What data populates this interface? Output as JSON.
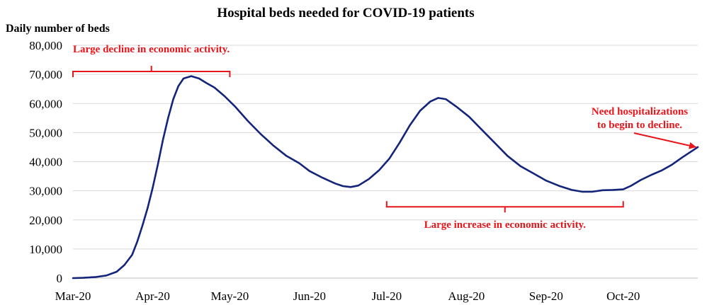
{
  "chart_data": {
    "type": "line",
    "title": "Hospital beds needed for COVID-19 patients",
    "ylabel": "Daily number of beds",
    "xlabel": "",
    "ylim": [
      0,
      80000
    ],
    "yticks": [
      0,
      10000,
      20000,
      30000,
      40000,
      50000,
      60000,
      70000,
      80000
    ],
    "ytick_labels": [
      "0",
      "10,000",
      "20,000",
      "30,000",
      "40,000",
      "50,000",
      "60,000",
      "70,000",
      "80,000"
    ],
    "xticks": [
      {
        "date": "2020-03-01",
        "label": "Mar-20"
      },
      {
        "date": "2020-04-01",
        "label": "Apr-20"
      },
      {
        "date": "2020-05-01",
        "label": "May-20"
      },
      {
        "date": "2020-06-01",
        "label": "Jun-20"
      },
      {
        "date": "2020-07-01",
        "label": "Jul-20"
      },
      {
        "date": "2020-08-01",
        "label": "Aug-20"
      },
      {
        "date": "2020-09-01",
        "label": "Sep-20"
      },
      {
        "date": "2020-10-01",
        "label": "Oct-20"
      }
    ],
    "xlim": [
      "2020-03-01",
      "2020-10-30"
    ],
    "grid": "horizontal",
    "legend": "none",
    "series": [
      {
        "color": "#14247a",
        "points": [
          [
            "2020-03-01",
            0
          ],
          [
            "2020-03-05",
            100
          ],
          [
            "2020-03-10",
            400
          ],
          [
            "2020-03-14",
            900
          ],
          [
            "2020-03-18",
            2200
          ],
          [
            "2020-03-21",
            4500
          ],
          [
            "2020-03-24",
            8000
          ],
          [
            "2020-03-26",
            12500
          ],
          [
            "2020-03-28",
            18000
          ],
          [
            "2020-03-30",
            24000
          ],
          [
            "2020-04-01",
            31000
          ],
          [
            "2020-04-03",
            39000
          ],
          [
            "2020-04-05",
            47500
          ],
          [
            "2020-04-07",
            55000
          ],
          [
            "2020-04-09",
            61500
          ],
          [
            "2020-04-11",
            66000
          ],
          [
            "2020-04-13",
            68600
          ],
          [
            "2020-04-16",
            69400
          ],
          [
            "2020-04-19",
            68600
          ],
          [
            "2020-04-22",
            67000
          ],
          [
            "2020-04-25",
            65500
          ],
          [
            "2020-04-29",
            62500
          ],
          [
            "2020-05-03",
            59000
          ],
          [
            "2020-05-08",
            54000
          ],
          [
            "2020-05-13",
            49500
          ],
          [
            "2020-05-18",
            45500
          ],
          [
            "2020-05-23",
            42000
          ],
          [
            "2020-05-28",
            39500
          ],
          [
            "2020-06-01",
            36800
          ],
          [
            "2020-06-06",
            34500
          ],
          [
            "2020-06-11",
            32500
          ],
          [
            "2020-06-14",
            31600
          ],
          [
            "2020-06-17",
            31300
          ],
          [
            "2020-06-20",
            31800
          ],
          [
            "2020-06-24",
            34000
          ],
          [
            "2020-06-28",
            37000
          ],
          [
            "2020-07-02",
            41000
          ],
          [
            "2020-07-06",
            46500
          ],
          [
            "2020-07-10",
            52500
          ],
          [
            "2020-07-14",
            57500
          ],
          [
            "2020-07-18",
            60700
          ],
          [
            "2020-07-21",
            61900
          ],
          [
            "2020-07-24",
            61500
          ],
          [
            "2020-07-28",
            59000
          ],
          [
            "2020-08-02",
            55500
          ],
          [
            "2020-08-07",
            51000
          ],
          [
            "2020-08-12",
            46500
          ],
          [
            "2020-08-17",
            42000
          ],
          [
            "2020-08-22",
            38500
          ],
          [
            "2020-08-27",
            36000
          ],
          [
            "2020-09-01",
            33500
          ],
          [
            "2020-09-06",
            31700
          ],
          [
            "2020-09-11",
            30300
          ],
          [
            "2020-09-15",
            29700
          ],
          [
            "2020-09-19",
            29700
          ],
          [
            "2020-09-23",
            30200
          ],
          [
            "2020-09-27",
            30300
          ],
          [
            "2020-10-01",
            30500
          ],
          [
            "2020-10-04",
            31700
          ],
          [
            "2020-10-08",
            33800
          ],
          [
            "2020-10-12",
            35500
          ],
          [
            "2020-10-16",
            37000
          ],
          [
            "2020-10-20",
            39000
          ],
          [
            "2020-10-24",
            41500
          ],
          [
            "2020-10-30",
            45000
          ]
        ]
      }
    ],
    "annotations": [
      {
        "text": "Large decline in economic activity.",
        "bracket_from": "2020-03-01",
        "bracket_to": "2020-05-01",
        "bracket_value": 71000
      },
      {
        "text": "Large increase in economic activity.",
        "bracket_from": "2020-07-01",
        "bracket_to": "2020-10-01",
        "bracket_value": 24500
      },
      {
        "text_lines": [
          "Need hospitalizations",
          "to begin to decline."
        ],
        "arrow_to_date": "2020-10-30",
        "arrow_to_value": 44500
      }
    ]
  }
}
